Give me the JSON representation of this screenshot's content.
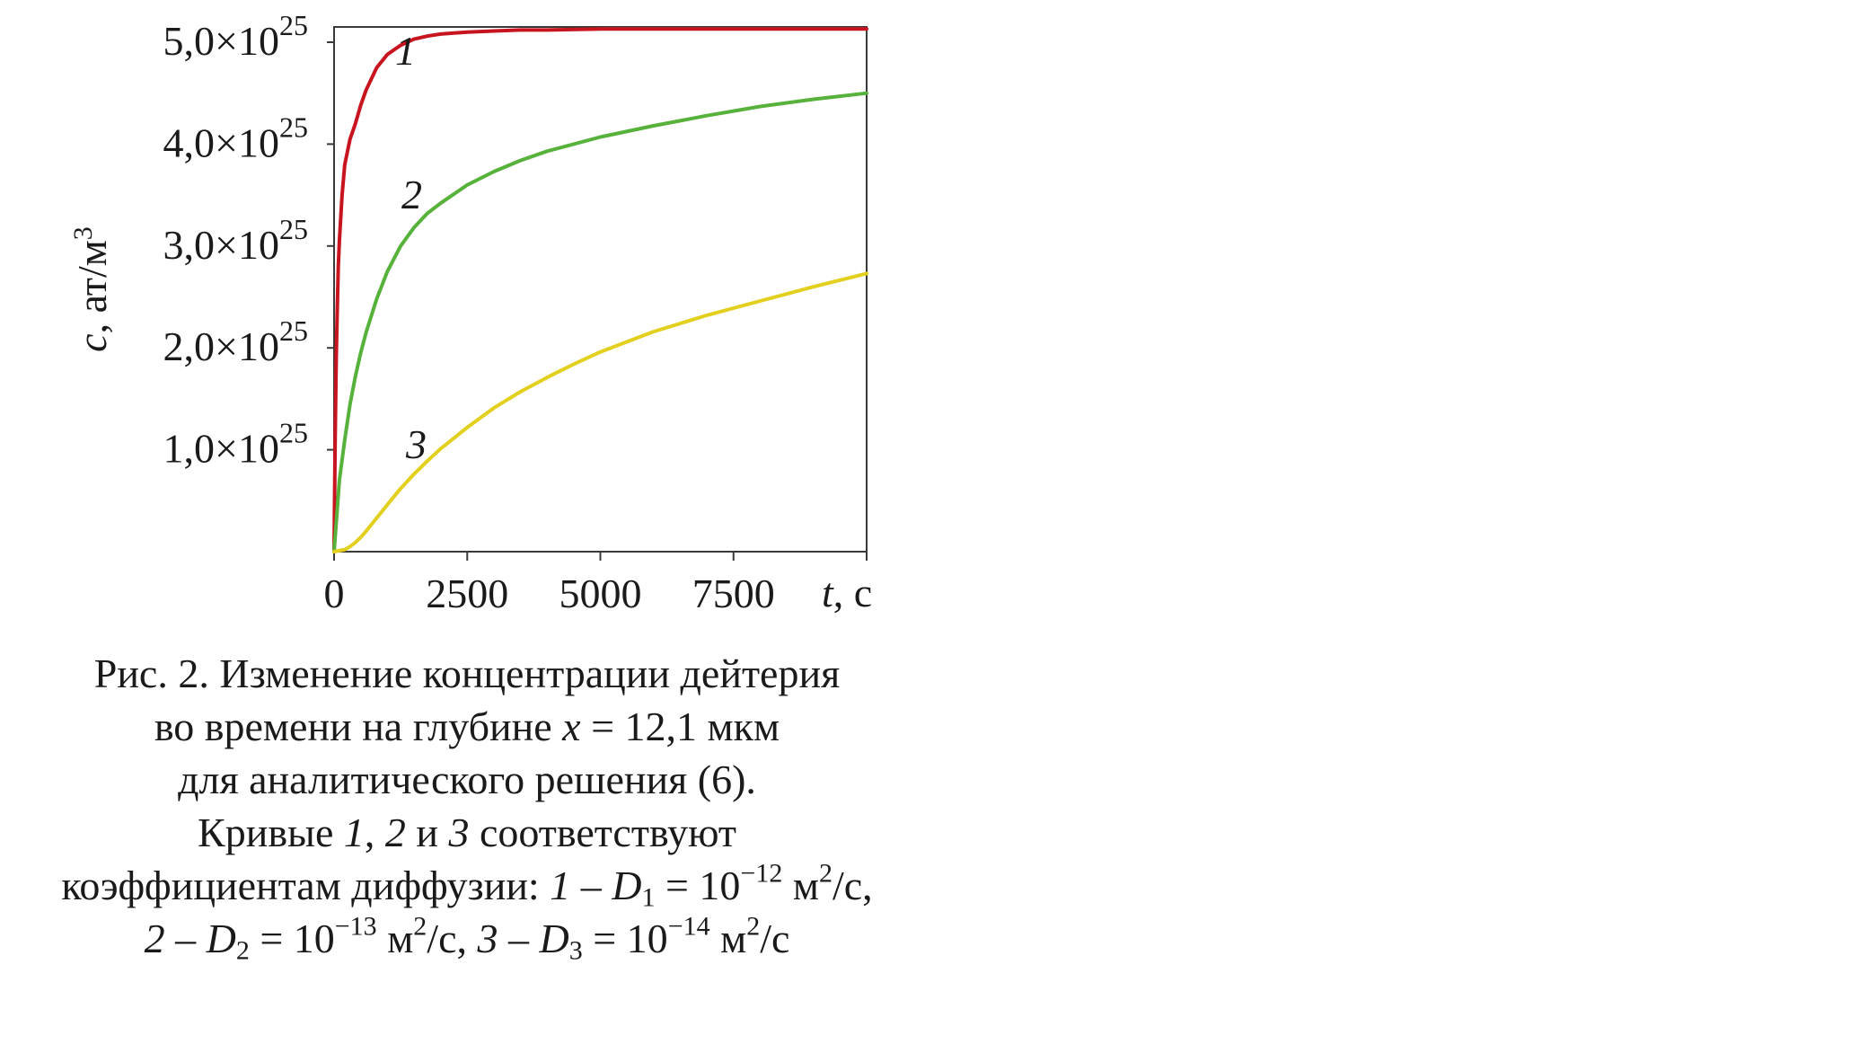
{
  "chart_data": {
    "type": "line",
    "title": "",
    "xlabel_var": "t",
    "xlabel_unit": ", с",
    "ylabel_var": "c",
    "ylabel_unit": ", ат/м",
    "ylabel_exp": "3",
    "xlim": [
      0,
      10000
    ],
    "ylim": [
      0,
      5.15e+25
    ],
    "x_ticks": [
      {
        "value": 0,
        "label": "0"
      },
      {
        "value": 2500,
        "label": "2500"
      },
      {
        "value": 5000,
        "label": "5000"
      },
      {
        "value": 7500,
        "label": "7500"
      }
    ],
    "y_ticks": [
      {
        "value": 1e+25,
        "mantissa": "1,0×10",
        "exp": "25"
      },
      {
        "value": 2e+25,
        "mantissa": "2,0×10",
        "exp": "25"
      },
      {
        "value": 3e+25,
        "mantissa": "3,0×10",
        "exp": "25"
      },
      {
        "value": 4e+25,
        "mantissa": "4,0×10",
        "exp": "25"
      },
      {
        "value": 5e+25,
        "mantissa": "5,0×10",
        "exp": "25"
      }
    ],
    "grid": false,
    "legend": "none",
    "series": [
      {
        "label": "1",
        "color": "#c8141e",
        "x": [
          0,
          20,
          40,
          60,
          80,
          100,
          150,
          200,
          300,
          400,
          500,
          600,
          800,
          1000,
          1250,
          1500,
          1750,
          2000,
          2500,
          3000,
          3500,
          4000,
          5000,
          6000,
          7000,
          8000,
          9000,
          10000
        ],
        "y": [
          0,
          1.1e+25,
          1.9e+25,
          2.4e+25,
          2.8e+25,
          3.05e+25,
          3.5e+25,
          3.8e+25,
          4.05e+25,
          4.2e+25,
          4.38e+25,
          4.53e+25,
          4.75e+25,
          4.88e+25,
          4.97e+25,
          5.03e+25,
          5.06e+25,
          5.08e+25,
          5.1e+25,
          5.11e+25,
          5.12e+25,
          5.12e+25,
          5.13e+25,
          5.13e+25,
          5.13e+25,
          5.13e+25,
          5.13e+25,
          5.13e+25
        ]
      },
      {
        "label": "2",
        "color": "#56b23a",
        "x": [
          0,
          100,
          200,
          300,
          400,
          500,
          600,
          800,
          1000,
          1250,
          1500,
          1750,
          2000,
          2500,
          3000,
          3500,
          4000,
          5000,
          6000,
          7000,
          8000,
          9000,
          10000
        ],
        "y": [
          0,
          7e+24,
          1.1e+25,
          1.45e+25,
          1.72e+25,
          1.95e+25,
          2.15e+25,
          2.48e+25,
          2.75e+25,
          3e+25,
          3.18e+25,
          3.32e+25,
          3.42e+25,
          3.6e+25,
          3.73e+25,
          3.84e+25,
          3.93e+25,
          4.07e+25,
          4.18e+25,
          4.28e+25,
          4.37e+25,
          4.44e+25,
          4.5e+25
        ]
      },
      {
        "label": "3",
        "color": "#e2cf1e",
        "x": [
          0,
          100,
          200,
          300,
          400,
          500,
          600,
          800,
          1000,
          1250,
          1500,
          1750,
          2000,
          2500,
          3000,
          3500,
          4000,
          4500,
          5000,
          6000,
          7000,
          8000,
          9000,
          10000
        ],
        "y": [
          0,
          1e+23,
          2e+23,
          5e+23,
          9e+23,
          1.4e+24,
          2e+24,
          3.3e+24,
          4.6e+24,
          6.2e+24,
          7.6e+24,
          8.9e+24,
          1.01e+25,
          1.22e+25,
          1.41e+25,
          1.57e+25,
          1.71e+25,
          1.84e+25,
          1.96e+25,
          2.16e+25,
          2.32e+25,
          2.46e+25,
          2.6e+25,
          2.73e+25
        ]
      }
    ]
  },
  "caption": {
    "line1": "Рис. 2. Изменение концентрации дейтерия",
    "line2_a": "во времени на глубине ",
    "line2_var": "x",
    "line2_b": " = 12,1 мкм",
    "line3": "для аналитического решения (6).",
    "line4_a": "Кривые ",
    "line4_n1": "1",
    "line4_b": ", ",
    "line4_n2": "2",
    "line4_c": " и ",
    "line4_n3": "3",
    "line4_d": " соответствуют",
    "line5_a": "коэффициентам диффузии: ",
    "line5_n": "1",
    "line5_dash": " – ",
    "line5_D": "D",
    "line5_sub": "1",
    "line5_eq": " = 10",
    "line5_exp": "−12",
    "line5_unit": " м",
    "line5_unit_exp": "2",
    "line5_tail": "/с,",
    "line6_n2": "2",
    "line6_dash": " – ",
    "line6_D2": "D",
    "line6_sub2": "2",
    "line6_eq2": " = 10",
    "line6_exp2": "−13",
    "line6_unit2": " м",
    "line6_unit2_exp": "2",
    "line6_mid": "/с, ",
    "line6_n3": "3",
    "line6_dash3": " – ",
    "line6_D3": "D",
    "line6_sub3": "3",
    "line6_eq3": " = 10",
    "line6_exp3": "−14",
    "line6_unit3": " м",
    "line6_unit3_exp": "2",
    "line6_tail": "/с"
  }
}
